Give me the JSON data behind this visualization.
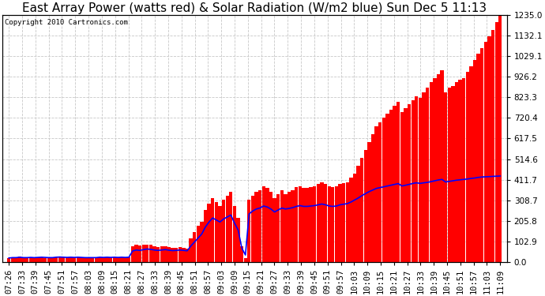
{
  "title": "East Array Power (watts red) & Solar Radiation (W/m2 blue) Sun Dec 5 11:13",
  "copyright": "Copyright 2010 Cartronics.com",
  "ylabel_right_ticks": [
    0.0,
    102.9,
    205.8,
    308.7,
    411.7,
    514.6,
    617.5,
    720.4,
    823.3,
    926.2,
    1029.1,
    1132.1,
    1235.0
  ],
  "ymax": 1235.0,
  "ymin": 0.0,
  "x_labels": [
    "07:26",
    "07:33",
    "07:39",
    "07:45",
    "07:51",
    "07:57",
    "08:03",
    "08:09",
    "08:15",
    "08:21",
    "08:27",
    "08:33",
    "08:39",
    "08:45",
    "08:51",
    "08:57",
    "09:03",
    "09:09",
    "09:15",
    "09:21",
    "09:27",
    "09:33",
    "09:39",
    "09:45",
    "09:51",
    "09:57",
    "10:03",
    "10:09",
    "10:15",
    "10:21",
    "10:27",
    "10:33",
    "10:39",
    "10:45",
    "10:51",
    "10:57",
    "11:03",
    "11:09"
  ],
  "bg_color": "#ffffff",
  "plot_bg_color": "#ffffff",
  "grid_color": "#c8c8c8",
  "bar_color": "#ff0000",
  "line_color": "#0000ff",
  "title_fontsize": 11,
  "tick_fontsize": 7.5,
  "copyright_fontsize": 6.5,
  "power": [
    18,
    25,
    22,
    28,
    20,
    22,
    25,
    20,
    22,
    25,
    20,
    18,
    22,
    25,
    28,
    25,
    22,
    25,
    22,
    25,
    22,
    20,
    18,
    20,
    22,
    25,
    22,
    25,
    22,
    25,
    22,
    25,
    22,
    25,
    80,
    85,
    82,
    85,
    88,
    85,
    80,
    75,
    78,
    80,
    75,
    70,
    72,
    75,
    70,
    68,
    120,
    150,
    180,
    200,
    260,
    290,
    320,
    300,
    280,
    310,
    330,
    350,
    280,
    220,
    80,
    20,
    310,
    330,
    350,
    360,
    380,
    370,
    350,
    320,
    340,
    360,
    340,
    350,
    360,
    375,
    380,
    370,
    370,
    375,
    380,
    390,
    400,
    390,
    380,
    375,
    380,
    390,
    395,
    400,
    420,
    440,
    480,
    520,
    560,
    600,
    640,
    680,
    700,
    720,
    740,
    760,
    780,
    800,
    750,
    770,
    790,
    810,
    830,
    820,
    850,
    870,
    900,
    920,
    940,
    960,
    850,
    870,
    880,
    900,
    910,
    920,
    950,
    980,
    1010,
    1040,
    1070,
    1100,
    1130,
    1160,
    1200,
    1230
  ],
  "radiation": [
    20,
    22,
    22,
    24,
    22,
    22,
    23,
    22,
    23,
    24,
    23,
    22,
    22,
    24,
    25,
    24,
    23,
    24,
    23,
    24,
    23,
    22,
    22,
    22,
    22,
    24,
    23,
    24,
    23,
    24,
    23,
    24,
    23,
    24,
    55,
    60,
    58,
    62,
    65,
    63,
    60,
    58,
    60,
    62,
    59,
    57,
    58,
    60,
    58,
    56,
    80,
    100,
    120,
    140,
    175,
    200,
    220,
    210,
    200,
    215,
    225,
    235,
    195,
    160,
    70,
    35,
    240,
    255,
    265,
    270,
    280,
    275,
    265,
    250,
    260,
    270,
    265,
    268,
    272,
    278,
    282,
    278,
    278,
    280,
    282,
    286,
    290,
    286,
    280,
    278,
    280,
    286,
    289,
    292,
    300,
    310,
    320,
    332,
    342,
    352,
    360,
    368,
    372,
    376,
    380,
    384,
    388,
    392,
    380,
    384,
    388,
    393,
    396,
    393,
    396,
    398,
    402,
    406,
    410,
    413,
    400,
    403,
    406,
    409,
    411,
    413,
    415,
    418,
    420,
    423,
    425,
    426,
    427,
    428,
    429,
    430
  ]
}
